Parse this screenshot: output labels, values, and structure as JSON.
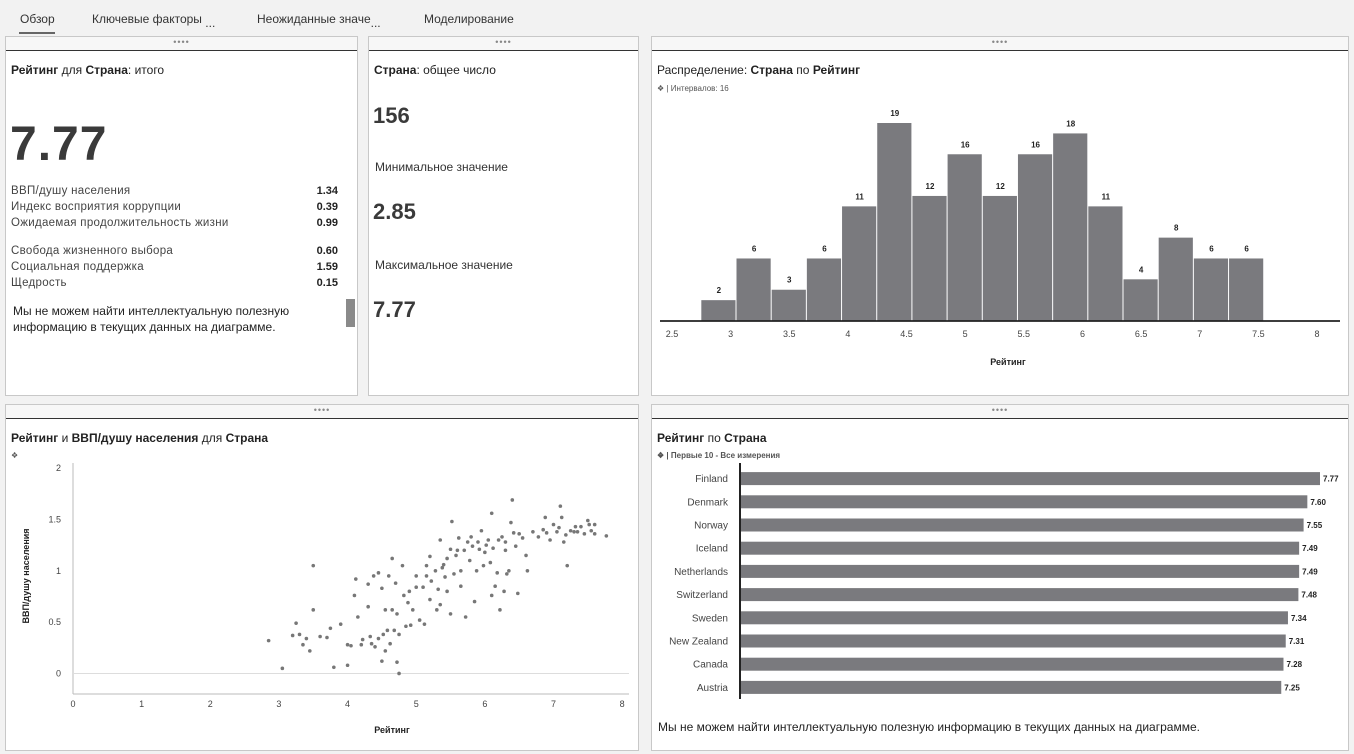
{
  "tabs": [
    {
      "label": "Обзор"
    },
    {
      "label": "Ключевые факторы"
    },
    {
      "label": "Неожиданные значе"
    },
    {
      "label": "Моделирование"
    }
  ],
  "tab_overflow": "...",
  "handle_dots": "••••",
  "panel1": {
    "title_bold1": "Рейтинг",
    "title_mid": " для ",
    "title_bold2": "Страна",
    "title_end": ": итого",
    "value": "7.77",
    "factors": [
      {
        "name": "ВВП/душу населения",
        "value": "1.34"
      },
      {
        "name": "Индекс восприятия коррупции",
        "value": "0.39"
      },
      {
        "name": "Ожидаемая продолжительность жизни",
        "value": "0.99"
      },
      {
        "name": "Свобода жизненного выбора",
        "value": "0.60"
      },
      {
        "name": "Социальная поддержка",
        "value": "1.59"
      },
      {
        "name": "Щедрость",
        "value": "0.15"
      }
    ],
    "note": "Мы не можем найти интеллектуальную полезную информацию в текущих данных на диаграмме."
  },
  "panel2": {
    "title_bold": "Страна",
    "title_end": ": общее число",
    "count": "156",
    "min_label": "Минимальное значение",
    "min_value": "2.85",
    "max_label": "Максимальное значение",
    "max_value": "7.77"
  },
  "panel3": {
    "title_pre": "Распределение: ",
    "title_bold1": "Страна",
    "title_mid": " по ",
    "title_bold2": "Рейтинг",
    "sub_icon": "cube-icon",
    "sub": "| Интервалов: 16"
  },
  "panel4": {
    "title_bold1": "Рейтинг",
    "title_mid": " и ",
    "title_bold2": "ВВП/душу населения",
    "title_mid2": " для ",
    "title_bold3": "Страна",
    "sub_icon": "cube-icon"
  },
  "panel5": {
    "title_bold1": "Рейтинг",
    "title_mid": " по ",
    "title_bold2": "Страна",
    "sub_icon": "cube-icon",
    "sub": "| Первые 10 - Все измерения",
    "note": "Мы не можем найти интеллектуальную полезную информацию в текущих данных на диаграмме."
  },
  "chart_data": [
    {
      "type": "bar",
      "subtype": "histogram",
      "bin_start": [
        2.75,
        3.05,
        3.35,
        3.65,
        3.95,
        4.25,
        4.55,
        4.85,
        5.15,
        5.45,
        5.75,
        6.05,
        6.35,
        6.65,
        6.95,
        7.25
      ],
      "bin_width": 0.3,
      "values": [
        2,
        6,
        3,
        6,
        11,
        19,
        12,
        16,
        12,
        16,
        18,
        11,
        4,
        8,
        6,
        6
      ],
      "xlabel": "Рейтинг",
      "xticks": [
        "2.5",
        "3",
        "3.5",
        "4",
        "4.5",
        "5",
        "5.5",
        "6",
        "6.5",
        "7",
        "7.5",
        "8"
      ],
      "xlim": [
        2.5,
        8
      ],
      "color": "#7a7a7e"
    },
    {
      "type": "scatter",
      "xlabel": "Рейтинг",
      "ylabel": "ВВП/душу населения",
      "xticks": [
        "0",
        "1",
        "2",
        "3",
        "4",
        "5",
        "6",
        "7",
        "8"
      ],
      "yticks": [
        "0",
        "0.5",
        "1",
        "1.5",
        "2"
      ],
      "xlim": [
        0,
        8.1
      ],
      "ylim": [
        -0.2,
        2.05
      ],
      "color": "#777777",
      "points": [
        [
          2.85,
          0.32
        ],
        [
          3.05,
          0.05
        ],
        [
          3.2,
          0.37
        ],
        [
          3.25,
          0.49
        ],
        [
          3.3,
          0.38
        ],
        [
          3.35,
          0.28
        ],
        [
          3.4,
          0.34
        ],
        [
          3.45,
          0.22
        ],
        [
          3.5,
          0.62
        ],
        [
          3.5,
          1.05
        ],
        [
          3.6,
          0.36
        ],
        [
          3.7,
          0.35
        ],
        [
          3.75,
          0.44
        ],
        [
          3.8,
          0.06
        ],
        [
          3.9,
          0.48
        ],
        [
          4.0,
          0.08
        ],
        [
          4.0,
          0.28
        ],
        [
          4.05,
          0.27
        ],
        [
          4.1,
          0.76
        ],
        [
          4.12,
          0.92
        ],
        [
          4.15,
          0.55
        ],
        [
          4.2,
          0.28
        ],
        [
          4.22,
          0.33
        ],
        [
          4.3,
          0.87
        ],
        [
          4.3,
          0.65
        ],
        [
          4.33,
          0.36
        ],
        [
          4.35,
          0.29
        ],
        [
          4.38,
          0.95
        ],
        [
          4.4,
          0.26
        ],
        [
          4.45,
          0.98
        ],
        [
          4.45,
          0.34
        ],
        [
          4.5,
          0.12
        ],
        [
          4.5,
          0.83
        ],
        [
          4.52,
          0.38
        ],
        [
          4.55,
          0.22
        ],
        [
          4.55,
          0.62
        ],
        [
          4.58,
          0.42
        ],
        [
          4.6,
          0.95
        ],
        [
          4.62,
          0.29
        ],
        [
          4.65,
          1.12
        ],
        [
          4.65,
          0.62
        ],
        [
          4.68,
          0.42
        ],
        [
          4.7,
          0.88
        ],
        [
          4.72,
          0.11
        ],
        [
          4.72,
          0.58
        ],
        [
          4.75,
          0.38
        ],
        [
          4.75,
          0.0
        ],
        [
          4.8,
          1.05
        ],
        [
          4.82,
          0.76
        ],
        [
          4.85,
          0.46
        ],
        [
          4.88,
          0.69
        ],
        [
          4.9,
          0.8
        ],
        [
          4.92,
          0.47
        ],
        [
          4.95,
          0.62
        ],
        [
          5.0,
          0.95
        ],
        [
          5.0,
          0.84
        ],
        [
          5.05,
          0.52
        ],
        [
          5.1,
          0.84
        ],
        [
          5.12,
          0.48
        ],
        [
          5.15,
          0.95
        ],
        [
          5.15,
          1.05
        ],
        [
          5.2,
          0.72
        ],
        [
          5.2,
          1.14
        ],
        [
          5.22,
          0.9
        ],
        [
          5.28,
          1.0
        ],
        [
          5.3,
          0.62
        ],
        [
          5.32,
          0.82
        ],
        [
          5.35,
          0.67
        ],
        [
          5.35,
          1.3
        ],
        [
          5.38,
          1.03
        ],
        [
          5.4,
          1.06
        ],
        [
          5.42,
          0.94
        ],
        [
          5.45,
          0.8
        ],
        [
          5.45,
          1.12
        ],
        [
          5.5,
          1.21
        ],
        [
          5.5,
          0.58
        ],
        [
          5.52,
          1.48
        ],
        [
          5.55,
          0.97
        ],
        [
          5.58,
          1.15
        ],
        [
          5.6,
          1.2
        ],
        [
          5.62,
          1.32
        ],
        [
          5.65,
          1.0
        ],
        [
          5.65,
          0.85
        ],
        [
          5.7,
          1.2
        ],
        [
          5.72,
          0.55
        ],
        [
          5.75,
          1.28
        ],
        [
          5.78,
          1.1
        ],
        [
          5.8,
          1.33
        ],
        [
          5.82,
          1.24
        ],
        [
          5.85,
          0.7
        ],
        [
          5.88,
          1.0
        ],
        [
          5.9,
          1.28
        ],
        [
          5.92,
          1.21
        ],
        [
          5.95,
          1.39
        ],
        [
          5.98,
          1.05
        ],
        [
          6.0,
          1.18
        ],
        [
          6.02,
          1.25
        ],
        [
          6.05,
          1.3
        ],
        [
          6.08,
          1.08
        ],
        [
          6.1,
          1.56
        ],
        [
          6.1,
          0.76
        ],
        [
          6.12,
          1.22
        ],
        [
          6.15,
          0.85
        ],
        [
          6.18,
          0.98
        ],
        [
          6.2,
          1.3
        ],
        [
          6.22,
          0.62
        ],
        [
          6.25,
          1.33
        ],
        [
          6.28,
          0.8
        ],
        [
          6.3,
          1.2
        ],
        [
          6.3,
          1.28
        ],
        [
          6.32,
          0.97
        ],
        [
          6.35,
          1.0
        ],
        [
          6.38,
          1.47
        ],
        [
          6.4,
          1.69
        ],
        [
          6.42,
          1.37
        ],
        [
          6.45,
          1.24
        ],
        [
          6.48,
          0.78
        ],
        [
          6.5,
          1.36
        ],
        [
          6.55,
          1.32
        ],
        [
          6.6,
          1.15
        ],
        [
          6.62,
          1.0
        ],
        [
          6.7,
          1.38
        ],
        [
          6.78,
          1.33
        ],
        [
          6.85,
          1.4
        ],
        [
          6.88,
          1.52
        ],
        [
          6.9,
          1.37
        ],
        [
          6.95,
          1.3
        ],
        [
          7.0,
          1.45
        ],
        [
          7.05,
          1.38
        ],
        [
          7.08,
          1.42
        ],
        [
          7.1,
          1.63
        ],
        [
          7.12,
          1.52
        ],
        [
          7.15,
          1.28
        ],
        [
          7.18,
          1.35
        ],
        [
          7.2,
          1.05
        ],
        [
          7.25,
          1.39
        ],
        [
          7.3,
          1.38
        ],
        [
          7.32,
          1.43
        ],
        [
          7.35,
          1.38
        ],
        [
          7.4,
          1.43
        ],
        [
          7.45,
          1.36
        ],
        [
          7.5,
          1.49
        ],
        [
          7.52,
          1.45
        ],
        [
          7.55,
          1.39
        ],
        [
          7.6,
          1.45
        ],
        [
          7.6,
          1.36
        ],
        [
          7.77,
          1.34
        ]
      ]
    },
    {
      "type": "bar",
      "orientation": "horizontal",
      "categories": [
        "Finland",
        "Denmark",
        "Norway",
        "Iceland",
        "Netherlands",
        "Switzerland",
        "Sweden",
        "New Zealand",
        "Canada",
        "Austria"
      ],
      "values": [
        7.77,
        7.6,
        7.55,
        7.49,
        7.49,
        7.48,
        7.34,
        7.31,
        7.28,
        7.25
      ],
      "labels": [
        "7.77",
        "7.60",
        "7.55",
        "7.49",
        "7.49",
        "7.48",
        "7.34",
        "7.31",
        "7.28",
        "7.25"
      ],
      "xlim": [
        0,
        7.77
      ],
      "color": "#7a7a7e"
    }
  ]
}
